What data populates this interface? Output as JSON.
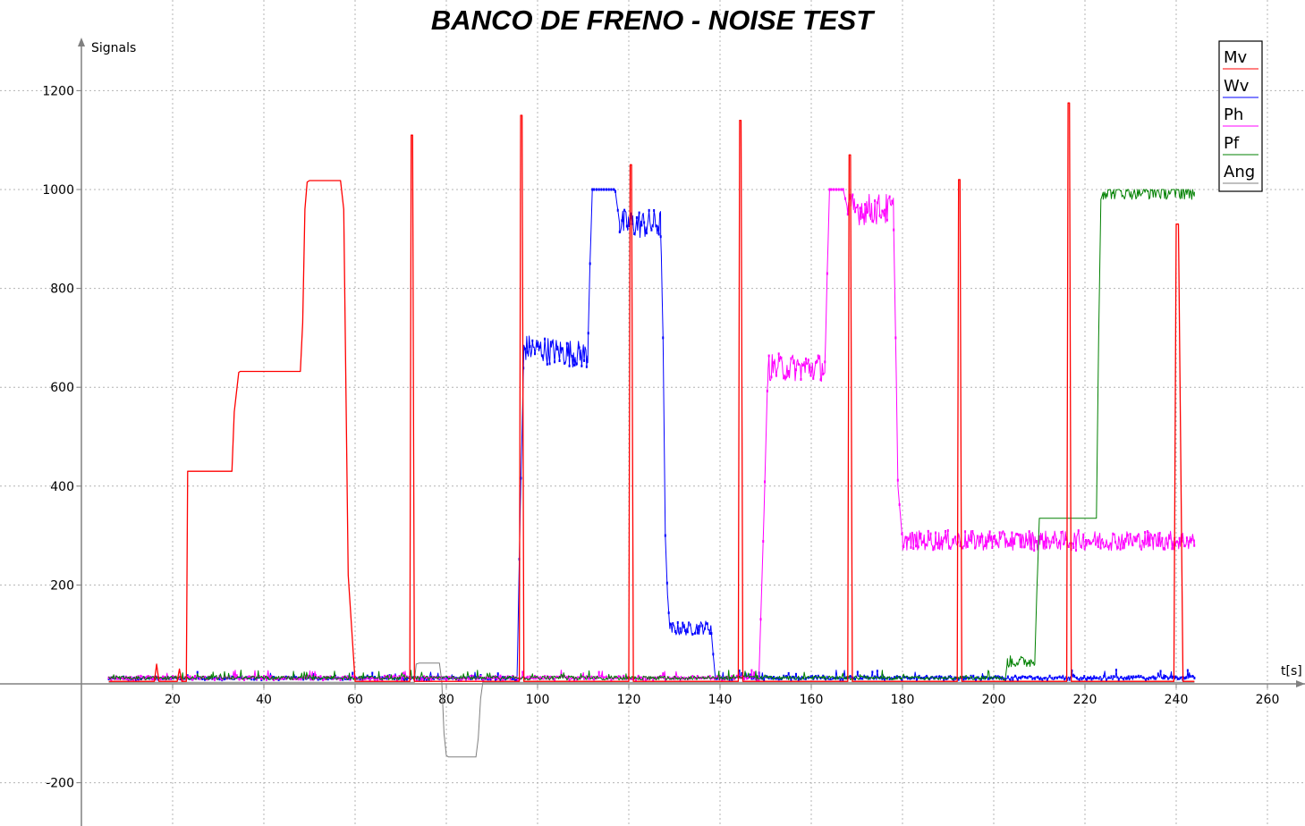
{
  "chart_data": {
    "type": "line",
    "title": "BANCO DE FRENO - NOISE TEST",
    "xlabel": "t[s]",
    "ylabel": "Signals",
    "xlim": [
      -0.5,
      269
    ],
    "ylim": [
      -285,
      1310
    ],
    "x_ticks": [
      20,
      40,
      60,
      80,
      100,
      120,
      140,
      160,
      180,
      200,
      220,
      240,
      260
    ],
    "y_ticks": [
      -200,
      200,
      400,
      600,
      800,
      1000,
      1200
    ],
    "grid": true,
    "legend_position": "top-right",
    "series": [
      {
        "name": "Mv",
        "color": "#ff0000",
        "x": [
          6,
          16,
          16.5,
          17,
          21,
          21.5,
          22,
          23,
          23.3,
          26,
          33,
          33.5,
          34.5,
          34.8,
          48,
          48.5,
          49,
          49.5,
          50,
          56,
          56.8,
          57.5,
          58.5,
          60,
          72,
          72.3,
          72.6,
          73,
          96,
          96.3,
          96.6,
          97,
          120,
          120.3,
          120.6,
          121,
          144,
          144.3,
          144.6,
          145,
          168,
          168.3,
          168.6,
          169,
          192,
          192.3,
          192.6,
          193,
          216,
          216.3,
          216.6,
          217,
          239.5,
          240,
          240.5,
          241.5,
          244
        ],
        "y": [
          5,
          5,
          40,
          5,
          5,
          30,
          5,
          5,
          430,
          430,
          430,
          550,
          630,
          632,
          632,
          730,
          960,
          1015,
          1018,
          1018,
          1018,
          960,
          220,
          5,
          5,
          1110,
          1110,
          5,
          5,
          1150,
          1150,
          5,
          5,
          1050,
          1050,
          5,
          5,
          1140,
          1140,
          5,
          5,
          1070,
          1070,
          5,
          5,
          1020,
          1020,
          5,
          5,
          1175,
          1175,
          5,
          5,
          930,
          930,
          5,
          5
        ]
      },
      {
        "name": "Wv",
        "color": "#0000ff",
        "x": [
          6,
          95.5,
          96.2,
          97,
          111,
          111.5,
          112,
          117,
          118,
          127,
          127.5,
          128,
          128.5,
          129,
          138,
          138.5,
          139,
          244
        ],
        "y": [
          8,
          8,
          350,
          680,
          665,
          850,
          1000,
          1000,
          930,
          930,
          700,
          300,
          180,
          110,
          115,
          60,
          8,
          8
        ],
        "noise": [
          [
            97,
            111,
            28
          ],
          [
            118,
            127,
            30
          ],
          [
            129,
            138,
            14
          ],
          [
            6,
            95,
            8
          ],
          [
            139,
            244,
            10
          ]
        ]
      },
      {
        "name": "Ph",
        "color": "#ff00ff",
        "x": [
          6,
          148.5,
          149.5,
          150.5,
          163,
          163.5,
          164,
          167,
          168,
          178,
          178.5,
          179,
          180,
          244
        ],
        "y": [
          8,
          8,
          300,
          640,
          640,
          830,
          1000,
          1000,
          960,
          960,
          700,
          400,
          290,
          290
        ],
        "noise": [
          [
            150.5,
            163,
            28
          ],
          [
            168,
            178,
            32
          ],
          [
            180,
            244,
            20
          ],
          [
            6,
            148,
            10
          ]
        ]
      },
      {
        "name": "Pf",
        "color": "#008000",
        "x": [
          6,
          202.5,
          203,
          209,
          209.5,
          210,
          216,
          216.5,
          222.5,
          223,
          223.5,
          224,
          244
        ],
        "y": [
          8,
          8,
          45,
          45,
          200,
          335,
          335,
          335,
          335,
          700,
          980,
          995,
          995
        ],
        "noise": [
          [
            203,
            209,
            12
          ],
          [
            224,
            244,
            15
          ],
          [
            6,
            202,
            10
          ]
        ]
      },
      {
        "name": "Ang",
        "color": "#808080",
        "x": [
          6,
          73,
          73.4,
          74,
          78.5,
          79,
          79.5,
          80,
          80.5,
          86.5,
          87,
          87.5,
          88,
          244
        ],
        "y": [
          3,
          3,
          40,
          42,
          42,
          5,
          -100,
          -145,
          -148,
          -148,
          -110,
          -30,
          3,
          3
        ]
      }
    ]
  }
}
